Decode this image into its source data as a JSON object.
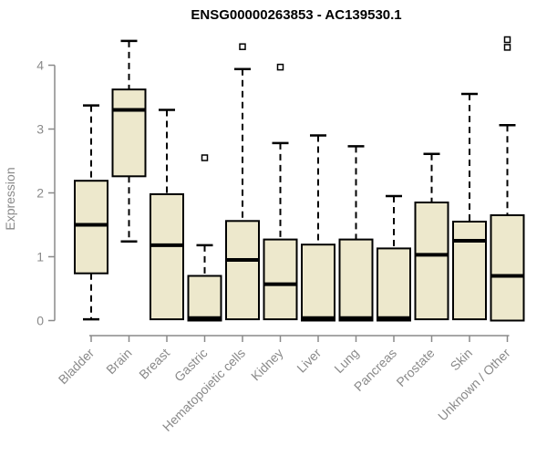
{
  "page": {
    "background": "#ffffff"
  },
  "chart_data": {
    "type": "boxplot",
    "title": "ENSG00000263853 - AC139530.1",
    "ylabel": "Expression",
    "xlabel": "",
    "ylim": [
      0,
      4.45
    ],
    "yticks": [
      0,
      1,
      2,
      3,
      4
    ],
    "grid": false,
    "legend": "none",
    "colors": {
      "box_fill": "#EDE8CC",
      "box_border": "#000000",
      "median": "#000000",
      "axis": "#8A8A8A",
      "tick_label": "#8A8A8A",
      "title": "#000000",
      "outlier_fill": "#FFFFFF"
    },
    "categories": [
      "Bladder",
      "Brain",
      "Breast",
      "Gastric",
      "Hematopoietic cells",
      "Kidney",
      "Liver",
      "Lung",
      "Pancreas",
      "Prostate",
      "Skin",
      "Unknown / Other"
    ],
    "series": [
      {
        "category": "Bladder",
        "whisker_low": 0.02,
        "q1": 0.74,
        "median": 1.5,
        "q3": 2.19,
        "whisker_high": 3.37,
        "outliers": []
      },
      {
        "category": "Brain",
        "whisker_low": 1.24,
        "q1": 2.26,
        "median": 3.3,
        "q3": 3.62,
        "whisker_high": 4.38,
        "outliers": []
      },
      {
        "category": "Breast",
        "whisker_low": null,
        "q1": 0.02,
        "median": 1.18,
        "q3": 1.98,
        "whisker_high": 3.3,
        "outliers": []
      },
      {
        "category": "Gastric",
        "whisker_low": null,
        "q1": 0.0,
        "median": 0.04,
        "q3": 0.7,
        "whisker_high": 1.18,
        "outliers": [
          2.55
        ]
      },
      {
        "category": "Hematopoietic cells",
        "whisker_low": null,
        "q1": 0.02,
        "median": 0.95,
        "q3": 1.56,
        "whisker_high": 3.94,
        "outliers": [
          4.29
        ]
      },
      {
        "category": "Kidney",
        "whisker_low": null,
        "q1": 0.02,
        "median": 0.57,
        "q3": 1.27,
        "whisker_high": 2.78,
        "outliers": [
          3.97
        ]
      },
      {
        "category": "Liver",
        "whisker_low": null,
        "q1": 0.0,
        "median": 0.04,
        "q3": 1.19,
        "whisker_high": 2.9,
        "outliers": []
      },
      {
        "category": "Lung",
        "whisker_low": null,
        "q1": 0.0,
        "median": 0.04,
        "q3": 1.27,
        "whisker_high": 2.73,
        "outliers": []
      },
      {
        "category": "Pancreas",
        "whisker_low": null,
        "q1": 0.0,
        "median": 0.04,
        "q3": 1.13,
        "whisker_high": 1.95,
        "outliers": []
      },
      {
        "category": "Prostate",
        "whisker_low": null,
        "q1": 0.02,
        "median": 1.03,
        "q3": 1.85,
        "whisker_high": 2.61,
        "outliers": []
      },
      {
        "category": "Skin",
        "whisker_low": null,
        "q1": 0.02,
        "median": 1.25,
        "q3": 1.55,
        "whisker_high": 3.55,
        "outliers": []
      },
      {
        "category": "Unknown / Other",
        "whisker_low": null,
        "q1": 0.0,
        "median": 0.7,
        "q3": 1.65,
        "whisker_high": 3.06,
        "outliers": [
          4.4,
          4.28
        ]
      }
    ]
  }
}
